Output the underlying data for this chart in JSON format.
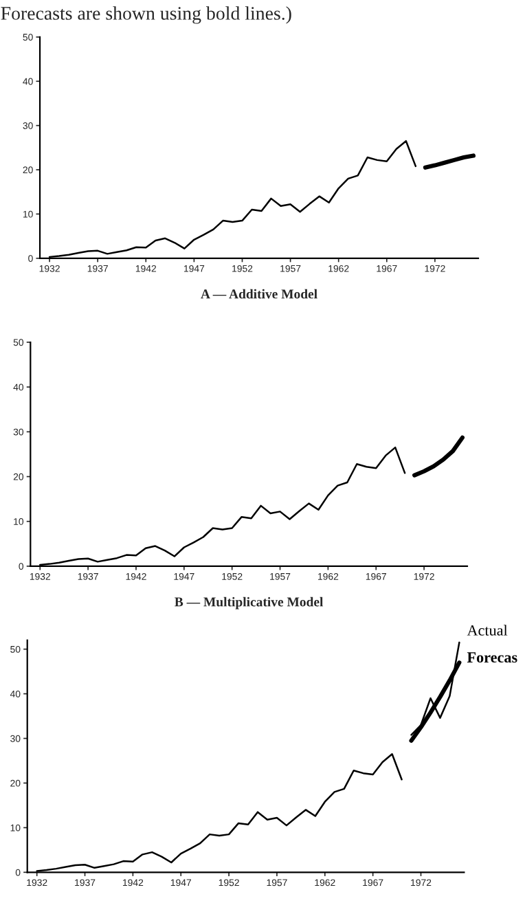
{
  "chart_data": [
    {
      "type": "line",
      "title": "Forecasts are shown using bold lines.)",
      "xlabel": "A — Additive Model",
      "xlim": [
        1931,
        1976.5
      ],
      "ylim": [
        0,
        50
      ],
      "xticks": [
        1932,
        1937,
        1942,
        1947,
        1952,
        1957,
        1962,
        1967,
        1972
      ],
      "yticks": [
        0,
        10,
        20,
        30,
        40,
        50
      ],
      "grid": false,
      "legend": false,
      "series": [
        {
          "color": "#000000",
          "x": [
            1932,
            1933,
            1934,
            1935,
            1936,
            1937,
            1938,
            1939,
            1940,
            1941,
            1942,
            1943,
            1944,
            1945,
            1946,
            1947,
            1948,
            1949,
            1950,
            1951,
            1952,
            1953,
            1954,
            1955,
            1956,
            1957,
            1958,
            1959,
            1960,
            1961,
            1962,
            1963,
            1964,
            1965,
            1966,
            1967,
            1968,
            1969,
            1970
          ],
          "values": [
            0.3,
            0.5,
            0.8,
            1.2,
            1.6,
            1.7,
            1.0,
            1.4,
            1.8,
            2.5,
            2.4,
            4.0,
            4.5,
            3.5,
            2.2,
            4.2,
            5.3,
            6.5,
            8.5,
            8.2,
            8.5,
            11.0,
            10.7,
            13.5,
            11.8,
            12.2,
            10.5,
            12.3,
            14.0,
            12.6,
            15.8,
            18.0,
            18.7,
            22.8,
            22.2,
            21.9,
            24.7,
            26.5,
            20.8
          ]
        },
        {
          "color": "#000000",
          "x": [
            1971,
            1972,
            1973,
            1974,
            1975,
            1976
          ],
          "values": [
            20.5,
            21.0,
            21.6,
            22.2,
            22.8,
            23.2
          ]
        }
      ]
    },
    {
      "type": "line",
      "xlabel": "B — Multiplicative Model",
      "xlim": [
        1931,
        1976.5
      ],
      "ylim": [
        0,
        50
      ],
      "xticks": [
        1932,
        1937,
        1942,
        1947,
        1952,
        1957,
        1962,
        1967,
        1972
      ],
      "yticks": [
        0,
        10,
        20,
        30,
        40,
        50
      ],
      "grid": false,
      "legend": false,
      "series": [
        {
          "color": "#000000",
          "x": [
            1932,
            1933,
            1934,
            1935,
            1936,
            1937,
            1938,
            1939,
            1940,
            1941,
            1942,
            1943,
            1944,
            1945,
            1946,
            1947,
            1948,
            1949,
            1950,
            1951,
            1952,
            1953,
            1954,
            1955,
            1956,
            1957,
            1958,
            1959,
            1960,
            1961,
            1962,
            1963,
            1964,
            1965,
            1966,
            1967,
            1968,
            1969,
            1970
          ],
          "values": [
            0.3,
            0.5,
            0.8,
            1.2,
            1.6,
            1.7,
            1.0,
            1.4,
            1.8,
            2.5,
            2.4,
            4.0,
            4.5,
            3.5,
            2.2,
            4.2,
            5.3,
            6.5,
            8.5,
            8.2,
            8.5,
            11.0,
            10.7,
            13.5,
            11.8,
            12.2,
            10.5,
            12.3,
            14.0,
            12.6,
            15.8,
            18.0,
            18.7,
            22.8,
            22.2,
            21.9,
            24.7,
            26.5,
            20.8
          ]
        },
        {
          "color": "#000000",
          "x": [
            1971,
            1972,
            1973,
            1974,
            1975,
            1976
          ],
          "values": [
            20.3,
            21.2,
            22.3,
            23.8,
            25.7,
            28.7
          ]
        }
      ]
    },
    {
      "type": "line",
      "xlim": [
        1931,
        1976.5
      ],
      "ylim": [
        0,
        52
      ],
      "xticks": [
        1932,
        1937,
        1942,
        1947,
        1952,
        1957,
        1962,
        1967,
        1972
      ],
      "yticks": [
        0,
        10,
        20,
        30,
        40,
        50
      ],
      "grid": false,
      "legend": false,
      "series": [
        {
          "color": "#000000",
          "x": [
            1932,
            1933,
            1934,
            1935,
            1936,
            1937,
            1938,
            1939,
            1940,
            1941,
            1942,
            1943,
            1944,
            1945,
            1946,
            1947,
            1948,
            1949,
            1950,
            1951,
            1952,
            1953,
            1954,
            1955,
            1956,
            1957,
            1958,
            1959,
            1960,
            1961,
            1962,
            1963,
            1964,
            1965,
            1966,
            1967,
            1968,
            1969,
            1970
          ],
          "values": [
            0.3,
            0.5,
            0.8,
            1.2,
            1.6,
            1.7,
            1.0,
            1.4,
            1.8,
            2.5,
            2.4,
            4.0,
            4.5,
            3.5,
            2.2,
            4.2,
            5.3,
            6.5,
            8.5,
            8.2,
            8.5,
            11.0,
            10.7,
            13.5,
            11.8,
            12.2,
            10.5,
            12.3,
            14.0,
            12.6,
            15.8,
            18.0,
            18.7,
            22.8,
            22.2,
            21.9,
            24.7,
            26.5,
            20.8
          ]
        },
        {
          "name": "Actual",
          "color": "#000000",
          "x": [
            1971,
            1972,
            1973,
            1974,
            1975,
            1976
          ],
          "values": [
            30.8,
            33.0,
            39.0,
            34.6,
            39.5,
            51.5
          ]
        },
        {
          "name": "Forecas",
          "color": "#000000",
          "x": [
            1971,
            1972,
            1973,
            1974,
            1975,
            1976
          ],
          "values": [
            29.5,
            32.5,
            35.8,
            39.3,
            43.0,
            47.0
          ]
        }
      ]
    }
  ]
}
